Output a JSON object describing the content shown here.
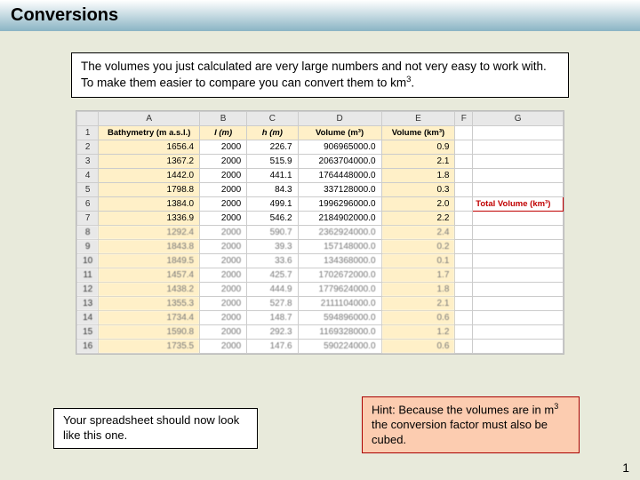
{
  "title": "Conversions",
  "intro_html": "The volumes you just calculated are very large numbers and not very easy to work with.  To make them easier to compare you can convert them to km<sup>3</sup>.",
  "caption_left": "Your spreadsheet should now look like this one.",
  "caption_right_html": "Hint: Because the volumes are in m<sup>3</sup> the conversion factor must also be cubed.",
  "page_number": "1",
  "sheet": {
    "col_letters": [
      "A",
      "B",
      "C",
      "D",
      "E",
      "F",
      "G"
    ],
    "col_widths": [
      "103",
      "48",
      "52",
      "85",
      "75",
      "18",
      "92"
    ],
    "header_row": [
      "Bathymetry (m a.s.l.)",
      "l (m)",
      "h (m)",
      "Volume (m³)",
      "Volume (km³)",
      "",
      ""
    ],
    "header_italic_idx": [
      1,
      2
    ],
    "total_volume_label": "Total Volume (km³)",
    "rows": [
      {
        "n": 2,
        "a": "1656.4",
        "b": "2000",
        "c": "226.7",
        "d": "906965000.0",
        "e": "0.9",
        "clear": true
      },
      {
        "n": 3,
        "a": "1367.2",
        "b": "2000",
        "c": "515.9",
        "d": "2063704000.0",
        "e": "2.1",
        "clear": true
      },
      {
        "n": 4,
        "a": "1442.0",
        "b": "2000",
        "c": "441.1",
        "d": "1764448000.0",
        "e": "1.8",
        "clear": true
      },
      {
        "n": 5,
        "a": "1798.8",
        "b": "2000",
        "c": "84.3",
        "d": "337128000.0",
        "e": "0.3",
        "clear": true
      },
      {
        "n": 6,
        "a": "1384.0",
        "b": "2000",
        "c": "499.1",
        "d": "1996296000.0",
        "e": "2.0",
        "clear": true,
        "showTV": true
      },
      {
        "n": 7,
        "a": "1336.9",
        "b": "2000",
        "c": "546.2",
        "d": "2184902000.0",
        "e": "2.2",
        "clear": true
      },
      {
        "n": 8,
        "a": "1292.4",
        "b": "2000",
        "c": "590.7",
        "d": "2362924000.0",
        "e": "2.4",
        "clear": false
      },
      {
        "n": 9,
        "a": "1843.8",
        "b": "2000",
        "c": "39.3",
        "d": "157148000.0",
        "e": "0.2",
        "clear": false
      },
      {
        "n": 10,
        "a": "1849.5",
        "b": "2000",
        "c": "33.6",
        "d": "134368000.0",
        "e": "0.1",
        "clear": false
      },
      {
        "n": 11,
        "a": "1457.4",
        "b": "2000",
        "c": "425.7",
        "d": "1702672000.0",
        "e": "1.7",
        "clear": false
      },
      {
        "n": 12,
        "a": "1438.2",
        "b": "2000",
        "c": "444.9",
        "d": "1779624000.0",
        "e": "1.8",
        "clear": false
      },
      {
        "n": 13,
        "a": "1355.3",
        "b": "2000",
        "c": "527.8",
        "d": "2111104000.0",
        "e": "2.1",
        "clear": false
      },
      {
        "n": 14,
        "a": "1734.4",
        "b": "2000",
        "c": "148.7",
        "d": "594896000.0",
        "e": "0.6",
        "clear": false
      },
      {
        "n": 15,
        "a": "1590.8",
        "b": "2000",
        "c": "292.3",
        "d": "1169328000.0",
        "e": "1.2",
        "clear": false
      },
      {
        "n": 16,
        "a": "1735.5",
        "b": "2000",
        "c": "147.6",
        "d": "590224000.0",
        "e": "0.6",
        "clear": false
      }
    ]
  }
}
